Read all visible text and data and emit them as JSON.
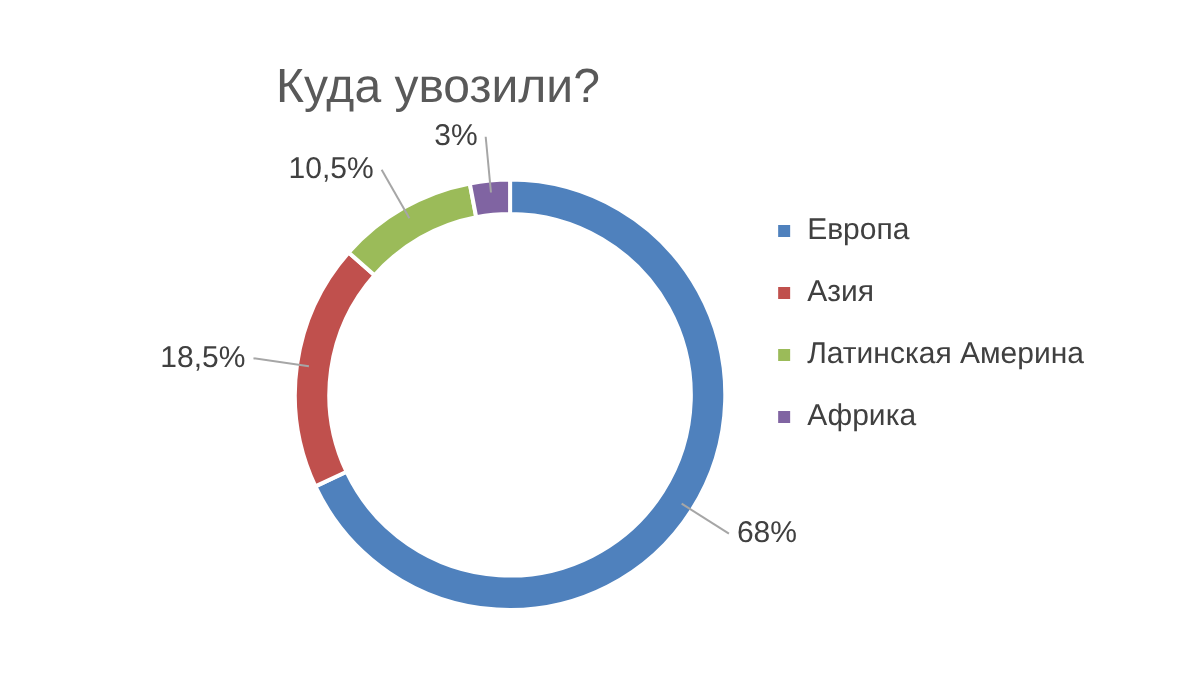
{
  "chart_data": {
    "type": "donut",
    "title": "Куда увозили?",
    "categories": [
      "Европа",
      "Азия",
      "Латинская Америна",
      "Африка"
    ],
    "values": [
      68,
      18.5,
      10.5,
      3
    ],
    "colors": [
      "#4f81bd",
      "#c0504d",
      "#9bbb59",
      "#8064a2"
    ],
    "value_labels": [
      "68%",
      "18,5%",
      "10,5%",
      "3%"
    ],
    "legend": "right"
  }
}
